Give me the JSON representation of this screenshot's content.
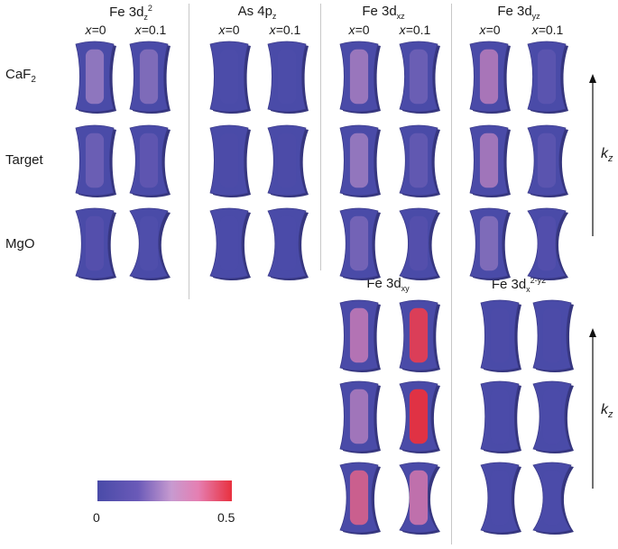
{
  "panels": [
    {
      "title_main": "Fe 3d",
      "title_sub": "z",
      "title_sup": "2",
      "x_labels": [
        "0",
        "0.1"
      ]
    },
    {
      "title_main": "As 4p",
      "title_sub": "z",
      "title_sup": "",
      "x_labels": [
        "0",
        "0.1"
      ]
    },
    {
      "title_main": "Fe 3d",
      "title_sub": "xz",
      "title_sup": "",
      "x_labels": [
        "0",
        "0.1"
      ]
    },
    {
      "title_main": "Fe 3d",
      "title_sub": "yz",
      "title_sup": "",
      "x_labels": [
        "0",
        "0.1"
      ]
    },
    {
      "title_main": "Fe 3d",
      "title_sub": "xy",
      "title_sup": "",
      "x_labels": []
    },
    {
      "title_main": "Fe 3d",
      "title_sub": "x",
      "title_sup": "2-y2",
      "x_labels": []
    }
  ],
  "x_prefix": "x=",
  "rows": [
    {
      "label_main": "CaF",
      "label_sub": "2"
    },
    {
      "label_main": "Target",
      "label_sub": ""
    },
    {
      "label_main": "MgO",
      "label_sub": ""
    }
  ],
  "kz": {
    "label_main": "k",
    "label_sub": "z"
  },
  "colorbar": {
    "min": "0",
    "max": "0.5",
    "colors": [
      "#4a4ba8",
      "#6a5ab8",
      "#c79ad0",
      "#e57fb2",
      "#e8303e"
    ]
  },
  "weights": {
    "Fe3dz2": [
      [
        0.25,
        0.22
      ],
      [
        0.18,
        0.15
      ],
      [
        0.12,
        0.08
      ]
    ],
    "As4pz": [
      [
        0.05,
        0.05
      ],
      [
        0.04,
        0.04
      ],
      [
        0.03,
        0.03
      ]
    ],
    "Fe3dxz": [
      [
        0.28,
        0.18
      ],
      [
        0.26,
        0.16
      ],
      [
        0.2,
        0.12
      ]
    ],
    "Fe3dyz": [
      [
        0.32,
        0.14
      ],
      [
        0.3,
        0.14
      ],
      [
        0.22,
        0.1
      ]
    ],
    "Fe3dxy": [
      [
        0.35,
        0.48
      ],
      [
        0.3,
        0.5
      ],
      [
        0.42,
        0.38
      ]
    ],
    "Fe3dx2y2": [
      [
        0.04,
        0.04
      ],
      [
        0.03,
        0.03
      ],
      [
        0.03,
        0.03
      ]
    ]
  }
}
